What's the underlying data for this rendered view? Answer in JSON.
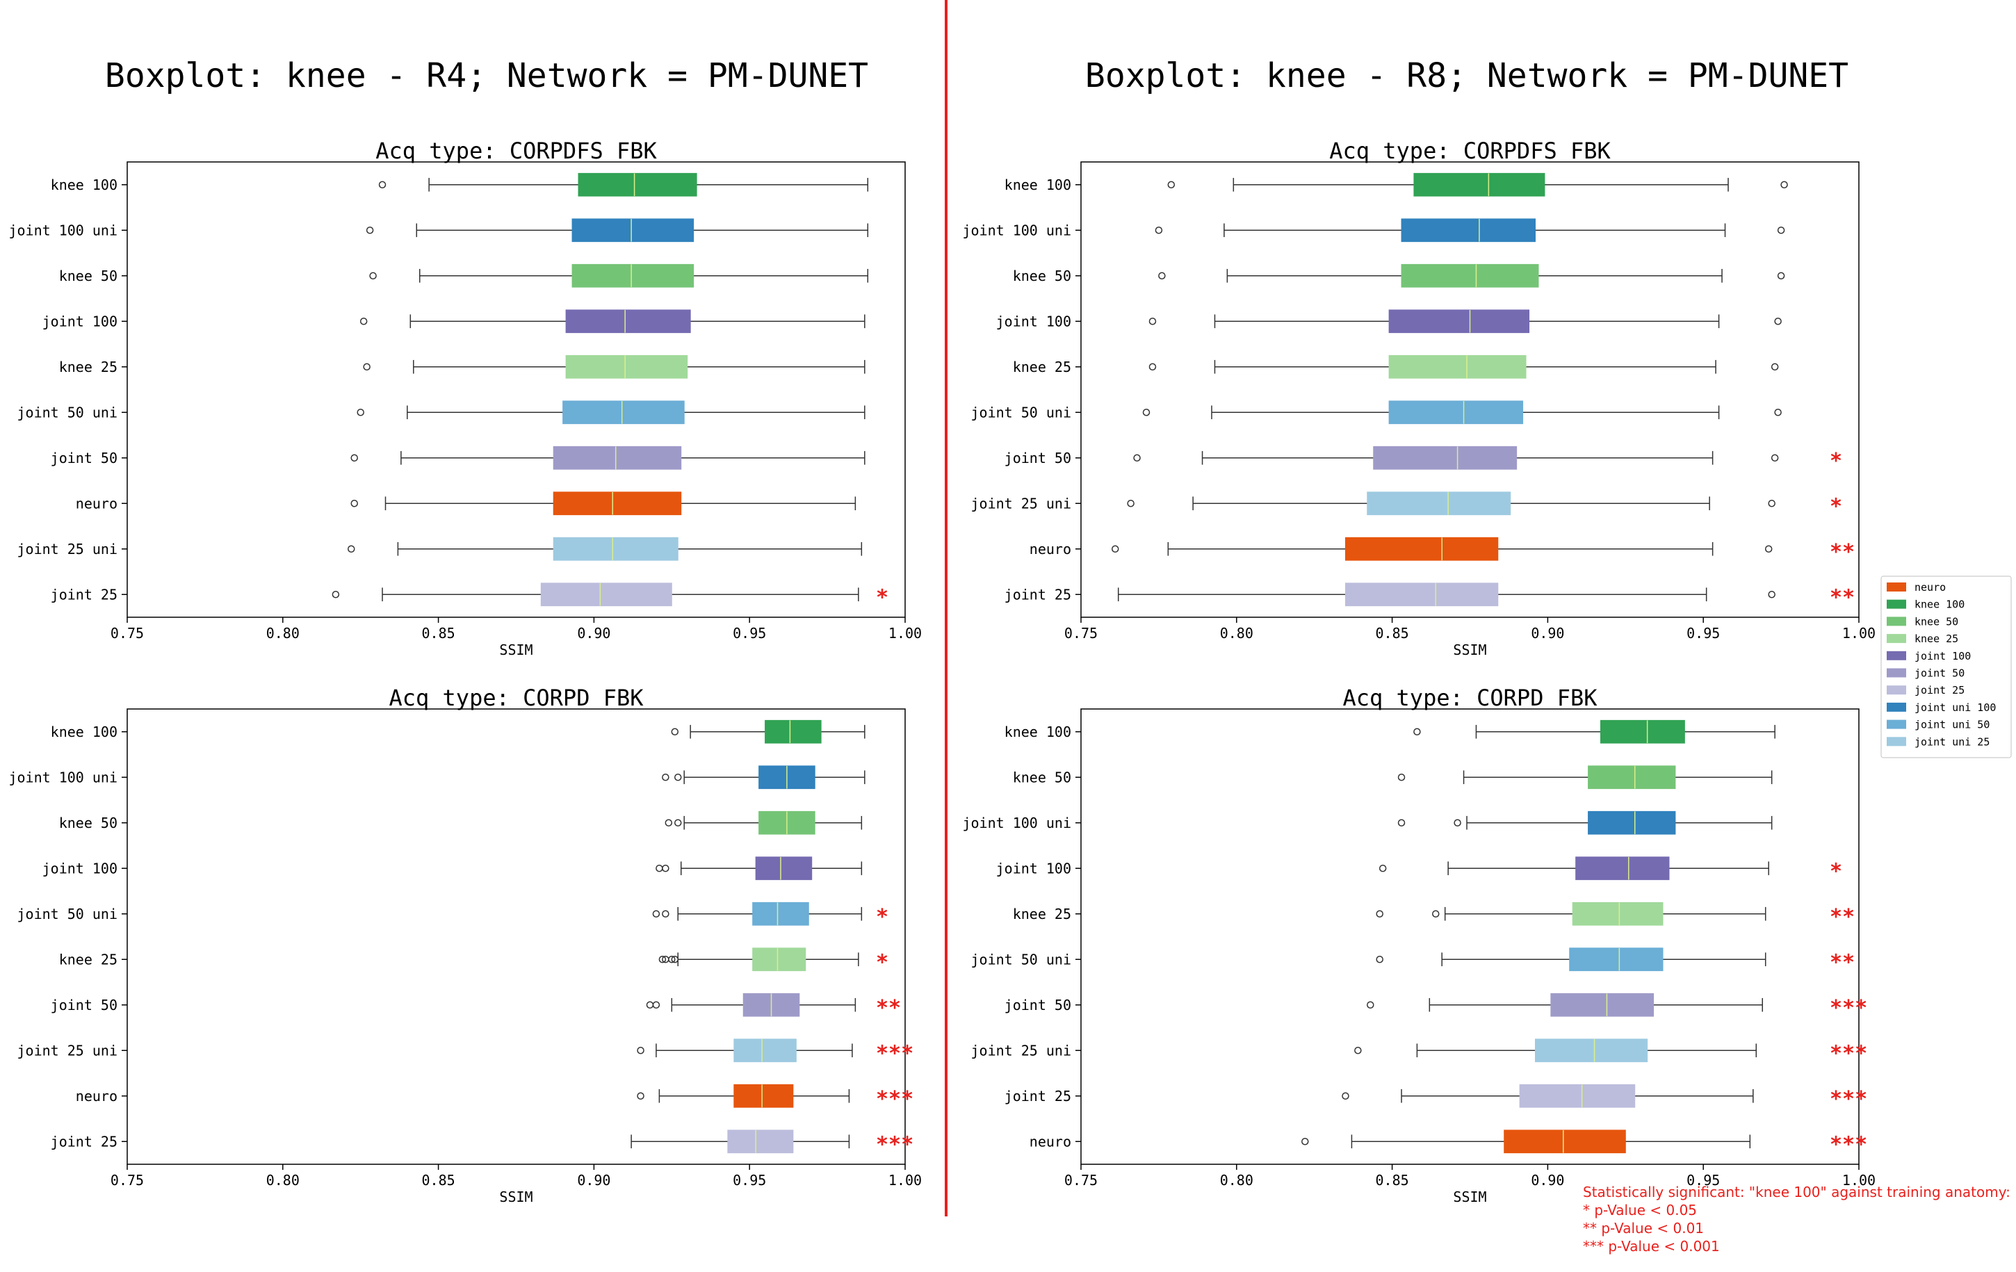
{
  "figure": {
    "titles": [
      "Boxplot: knee - R4; Network = PM-DUNET",
      "Boxplot: knee - R8; Network = PM-DUNET"
    ],
    "divider_color": "#e8211d"
  },
  "colors": {
    "neuro": "#e6550d",
    "knee 100": "#31a354",
    "knee 50": "#74c476",
    "knee 25": "#a1d99b",
    "joint 100": "#756bb1",
    "joint 50": "#9e9ac8",
    "joint 25": "#bcbddc",
    "joint 100 uni": "#3182bd",
    "joint 50 uni": "#6baed6",
    "joint 25 uni": "#9ecae1"
  },
  "legend": {
    "entries": [
      {
        "label": "neuro",
        "color": "#e6550d"
      },
      {
        "label": "knee 100",
        "color": "#31a354"
      },
      {
        "label": "knee 50",
        "color": "#74c476"
      },
      {
        "label": "knee 25",
        "color": "#a1d99b"
      },
      {
        "label": "joint 100",
        "color": "#756bb1"
      },
      {
        "label": "joint 50",
        "color": "#9e9ac8"
      },
      {
        "label": "joint 25",
        "color": "#bcbddc"
      },
      {
        "label": "joint uni 100",
        "color": "#3182bd"
      },
      {
        "label": "joint uni 50",
        "color": "#6baed6"
      },
      {
        "label": "joint uni 25",
        "color": "#9ecae1"
      }
    ]
  },
  "note": {
    "color": "#e8211d",
    "lines": [
      "Statistically significant: \"knee 100\" against training anatomy:",
      "* p-Value < 0.05",
      "** p-Value < 0.01",
      "*** p-Value < 0.001"
    ]
  },
  "chart_data": [
    {
      "type": "boxplot",
      "orientation": "horizontal",
      "title": "Acq type: CORPDFS FBK",
      "xlabel": "SSIM",
      "xlim": [
        0.75,
        1.0
      ],
      "xticks": [
        "0.75",
        "0.80",
        "0.85",
        "0.90",
        "0.95",
        "1.00"
      ],
      "rows": [
        {
          "label": "knee 100",
          "group": "knee 100",
          "wlo": 0.847,
          "q1": 0.895,
          "med": 0.913,
          "q3": 0.933,
          "whi": 0.988,
          "outliers": [
            0.832
          ],
          "sig": ""
        },
        {
          "label": "joint 100 uni",
          "group": "joint 100 uni",
          "wlo": 0.843,
          "q1": 0.893,
          "med": 0.912,
          "q3": 0.932,
          "whi": 0.988,
          "outliers": [
            0.828
          ],
          "sig": ""
        },
        {
          "label": "knee 50",
          "group": "knee 50",
          "wlo": 0.844,
          "q1": 0.893,
          "med": 0.912,
          "q3": 0.932,
          "whi": 0.988,
          "outliers": [
            0.829
          ],
          "sig": ""
        },
        {
          "label": "joint 100",
          "group": "joint 100",
          "wlo": 0.841,
          "q1": 0.891,
          "med": 0.91,
          "q3": 0.931,
          "whi": 0.987,
          "outliers": [
            0.826
          ],
          "sig": ""
        },
        {
          "label": "knee 25",
          "group": "knee 25",
          "wlo": 0.842,
          "q1": 0.891,
          "med": 0.91,
          "q3": 0.93,
          "whi": 0.987,
          "outliers": [
            0.827
          ],
          "sig": ""
        },
        {
          "label": "joint 50 uni",
          "group": "joint 50 uni",
          "wlo": 0.84,
          "q1": 0.89,
          "med": 0.909,
          "q3": 0.929,
          "whi": 0.987,
          "outliers": [
            0.825
          ],
          "sig": ""
        },
        {
          "label": "joint 50",
          "group": "joint 50",
          "wlo": 0.838,
          "q1": 0.887,
          "med": 0.907,
          "q3": 0.928,
          "whi": 0.987,
          "outliers": [
            0.823
          ],
          "sig": ""
        },
        {
          "label": "neuro",
          "group": "neuro",
          "wlo": 0.833,
          "q1": 0.887,
          "med": 0.906,
          "q3": 0.928,
          "whi": 0.984,
          "outliers": [
            0.823
          ],
          "sig": ""
        },
        {
          "label": "joint 25 uni",
          "group": "joint 25 uni",
          "wlo": 0.837,
          "q1": 0.887,
          "med": 0.906,
          "q3": 0.927,
          "whi": 0.986,
          "outliers": [
            0.822
          ],
          "sig": ""
        },
        {
          "label": "joint 25",
          "group": "joint 25",
          "wlo": 0.832,
          "q1": 0.883,
          "med": 0.902,
          "q3": 0.925,
          "whi": 0.985,
          "outliers": [
            0.817
          ],
          "sig": "*"
        }
      ]
    },
    {
      "type": "boxplot",
      "orientation": "horizontal",
      "title": "Acq type: CORPDFS FBK",
      "xlabel": "SSIM",
      "xlim": [
        0.75,
        1.0
      ],
      "xticks": [
        "0.75",
        "0.80",
        "0.85",
        "0.90",
        "0.95",
        "1.00"
      ],
      "rows": [
        {
          "label": "knee 100",
          "group": "knee 100",
          "wlo": 0.799,
          "q1": 0.857,
          "med": 0.881,
          "q3": 0.899,
          "whi": 0.958,
          "outliers": [
            0.779,
            0.976
          ],
          "sig": ""
        },
        {
          "label": "joint 100 uni",
          "group": "joint 100 uni",
          "wlo": 0.796,
          "q1": 0.853,
          "med": 0.878,
          "q3": 0.896,
          "whi": 0.957,
          "outliers": [
            0.775,
            0.975
          ],
          "sig": ""
        },
        {
          "label": "knee 50",
          "group": "knee 50",
          "wlo": 0.797,
          "q1": 0.853,
          "med": 0.877,
          "q3": 0.897,
          "whi": 0.956,
          "outliers": [
            0.776,
            0.975
          ],
          "sig": ""
        },
        {
          "label": "joint 100",
          "group": "joint 100",
          "wlo": 0.793,
          "q1": 0.849,
          "med": 0.875,
          "q3": 0.894,
          "whi": 0.955,
          "outliers": [
            0.773,
            0.974
          ],
          "sig": ""
        },
        {
          "label": "knee 25",
          "group": "knee 25",
          "wlo": 0.793,
          "q1": 0.849,
          "med": 0.874,
          "q3": 0.893,
          "whi": 0.954,
          "outliers": [
            0.773,
            0.973
          ],
          "sig": ""
        },
        {
          "label": "joint 50 uni",
          "group": "joint 50 uni",
          "wlo": 0.792,
          "q1": 0.849,
          "med": 0.873,
          "q3": 0.892,
          "whi": 0.955,
          "outliers": [
            0.771,
            0.974
          ],
          "sig": ""
        },
        {
          "label": "joint 50",
          "group": "joint 50",
          "wlo": 0.789,
          "q1": 0.844,
          "med": 0.871,
          "q3": 0.89,
          "whi": 0.953,
          "outliers": [
            0.768,
            0.973
          ],
          "sig": "*"
        },
        {
          "label": "joint 25 uni",
          "group": "joint 25 uni",
          "wlo": 0.786,
          "q1": 0.842,
          "med": 0.868,
          "q3": 0.888,
          "whi": 0.952,
          "outliers": [
            0.766,
            0.972
          ],
          "sig": "*"
        },
        {
          "label": "neuro",
          "group": "neuro",
          "wlo": 0.778,
          "q1": 0.835,
          "med": 0.866,
          "q3": 0.884,
          "whi": 0.953,
          "outliers": [
            0.761,
            0.971
          ],
          "sig": "**"
        },
        {
          "label": "joint 25",
          "group": "joint 25",
          "wlo": 0.762,
          "q1": 0.835,
          "med": 0.864,
          "q3": 0.884,
          "whi": 0.951,
          "outliers": [
            0.972
          ],
          "sig": "**"
        }
      ]
    },
    {
      "type": "boxplot",
      "orientation": "horizontal",
      "title": "Acq type: CORPD FBK",
      "xlabel": "SSIM",
      "xlim": [
        0.75,
        1.0
      ],
      "xticks": [
        "0.75",
        "0.80",
        "0.85",
        "0.90",
        "0.95",
        "1.00"
      ],
      "rows": [
        {
          "label": "knee 100",
          "group": "knee 100",
          "wlo": 0.931,
          "q1": 0.955,
          "med": 0.963,
          "q3": 0.973,
          "whi": 0.987,
          "outliers": [
            0.926
          ],
          "sig": ""
        },
        {
          "label": "joint 100 uni",
          "group": "joint 100 uni",
          "wlo": 0.929,
          "q1": 0.953,
          "med": 0.962,
          "q3": 0.971,
          "whi": 0.987,
          "outliers": [
            0.923,
            0.927
          ],
          "sig": ""
        },
        {
          "label": "knee 50",
          "group": "knee 50",
          "wlo": 0.929,
          "q1": 0.953,
          "med": 0.962,
          "q3": 0.971,
          "whi": 0.986,
          "outliers": [
            0.924,
            0.927
          ],
          "sig": ""
        },
        {
          "label": "joint 100",
          "group": "joint 100",
          "wlo": 0.928,
          "q1": 0.952,
          "med": 0.96,
          "q3": 0.97,
          "whi": 0.986,
          "outliers": [
            0.921,
            0.923
          ],
          "sig": ""
        },
        {
          "label": "joint 50 uni",
          "group": "joint 50 uni",
          "wlo": 0.927,
          "q1": 0.951,
          "med": 0.959,
          "q3": 0.969,
          "whi": 0.986,
          "outliers": [
            0.92,
            0.923
          ],
          "sig": "*"
        },
        {
          "label": "knee 25",
          "group": "knee 25",
          "wlo": 0.927,
          "q1": 0.951,
          "med": 0.959,
          "q3": 0.968,
          "whi": 0.985,
          "outliers": [
            0.922,
            0.923,
            0.925,
            0.926
          ],
          "sig": "*"
        },
        {
          "label": "joint 50",
          "group": "joint 50",
          "wlo": 0.925,
          "q1": 0.948,
          "med": 0.957,
          "q3": 0.966,
          "whi": 0.984,
          "outliers": [
            0.918,
            0.92
          ],
          "sig": "**"
        },
        {
          "label": "joint 25 uni",
          "group": "joint 25 uni",
          "wlo": 0.92,
          "q1": 0.945,
          "med": 0.954,
          "q3": 0.965,
          "whi": 0.983,
          "outliers": [
            0.915
          ],
          "sig": "***"
        },
        {
          "label": "neuro",
          "group": "neuro",
          "wlo": 0.921,
          "q1": 0.945,
          "med": 0.954,
          "q3": 0.964,
          "whi": 0.982,
          "outliers": [
            0.915
          ],
          "sig": "***"
        },
        {
          "label": "joint 25",
          "group": "joint 25",
          "wlo": 0.912,
          "q1": 0.943,
          "med": 0.952,
          "q3": 0.964,
          "whi": 0.982,
          "outliers": [],
          "sig": "***"
        }
      ]
    },
    {
      "type": "boxplot",
      "orientation": "horizontal",
      "title": "Acq type: CORPD FBK",
      "xlabel": "SSIM",
      "xlim": [
        0.75,
        1.0
      ],
      "xticks": [
        "0.75",
        "0.80",
        "0.85",
        "0.90",
        "0.95",
        "1.00"
      ],
      "rows": [
        {
          "label": "knee 100",
          "group": "knee 100",
          "wlo": 0.877,
          "q1": 0.917,
          "med": 0.932,
          "q3": 0.944,
          "whi": 0.973,
          "outliers": [
            0.858
          ],
          "sig": ""
        },
        {
          "label": "knee 50",
          "group": "knee 50",
          "wlo": 0.873,
          "q1": 0.913,
          "med": 0.928,
          "q3": 0.941,
          "whi": 0.972,
          "outliers": [
            0.853
          ],
          "sig": ""
        },
        {
          "label": "joint 100 uni",
          "group": "joint 100 uni",
          "wlo": 0.874,
          "q1": 0.913,
          "med": 0.928,
          "q3": 0.941,
          "whi": 0.972,
          "outliers": [
            0.853,
            0.871
          ],
          "sig": ""
        },
        {
          "label": "joint 100",
          "group": "joint 100",
          "wlo": 0.868,
          "q1": 0.909,
          "med": 0.926,
          "q3": 0.939,
          "whi": 0.971,
          "outliers": [
            0.847
          ],
          "sig": "*"
        },
        {
          "label": "knee 25",
          "group": "knee 25",
          "wlo": 0.867,
          "q1": 0.908,
          "med": 0.923,
          "q3": 0.937,
          "whi": 0.97,
          "outliers": [
            0.846,
            0.864
          ],
          "sig": "**"
        },
        {
          "label": "joint 50 uni",
          "group": "joint 50 uni",
          "wlo": 0.866,
          "q1": 0.907,
          "med": 0.923,
          "q3": 0.937,
          "whi": 0.97,
          "outliers": [
            0.846
          ],
          "sig": "**"
        },
        {
          "label": "joint 50",
          "group": "joint 50",
          "wlo": 0.862,
          "q1": 0.901,
          "med": 0.919,
          "q3": 0.934,
          "whi": 0.969,
          "outliers": [
            0.843
          ],
          "sig": "***"
        },
        {
          "label": "joint 25 uni",
          "group": "joint 25 uni",
          "wlo": 0.858,
          "q1": 0.896,
          "med": 0.915,
          "q3": 0.932,
          "whi": 0.967,
          "outliers": [
            0.839
          ],
          "sig": "***"
        },
        {
          "label": "joint 25",
          "group": "joint 25",
          "wlo": 0.853,
          "q1": 0.891,
          "med": 0.911,
          "q3": 0.928,
          "whi": 0.966,
          "outliers": [
            0.835
          ],
          "sig": "***"
        },
        {
          "label": "neuro",
          "group": "neuro",
          "wlo": 0.837,
          "q1": 0.886,
          "med": 0.905,
          "q3": 0.925,
          "whi": 0.965,
          "outliers": [
            0.822
          ],
          "sig": "***"
        }
      ]
    }
  ]
}
